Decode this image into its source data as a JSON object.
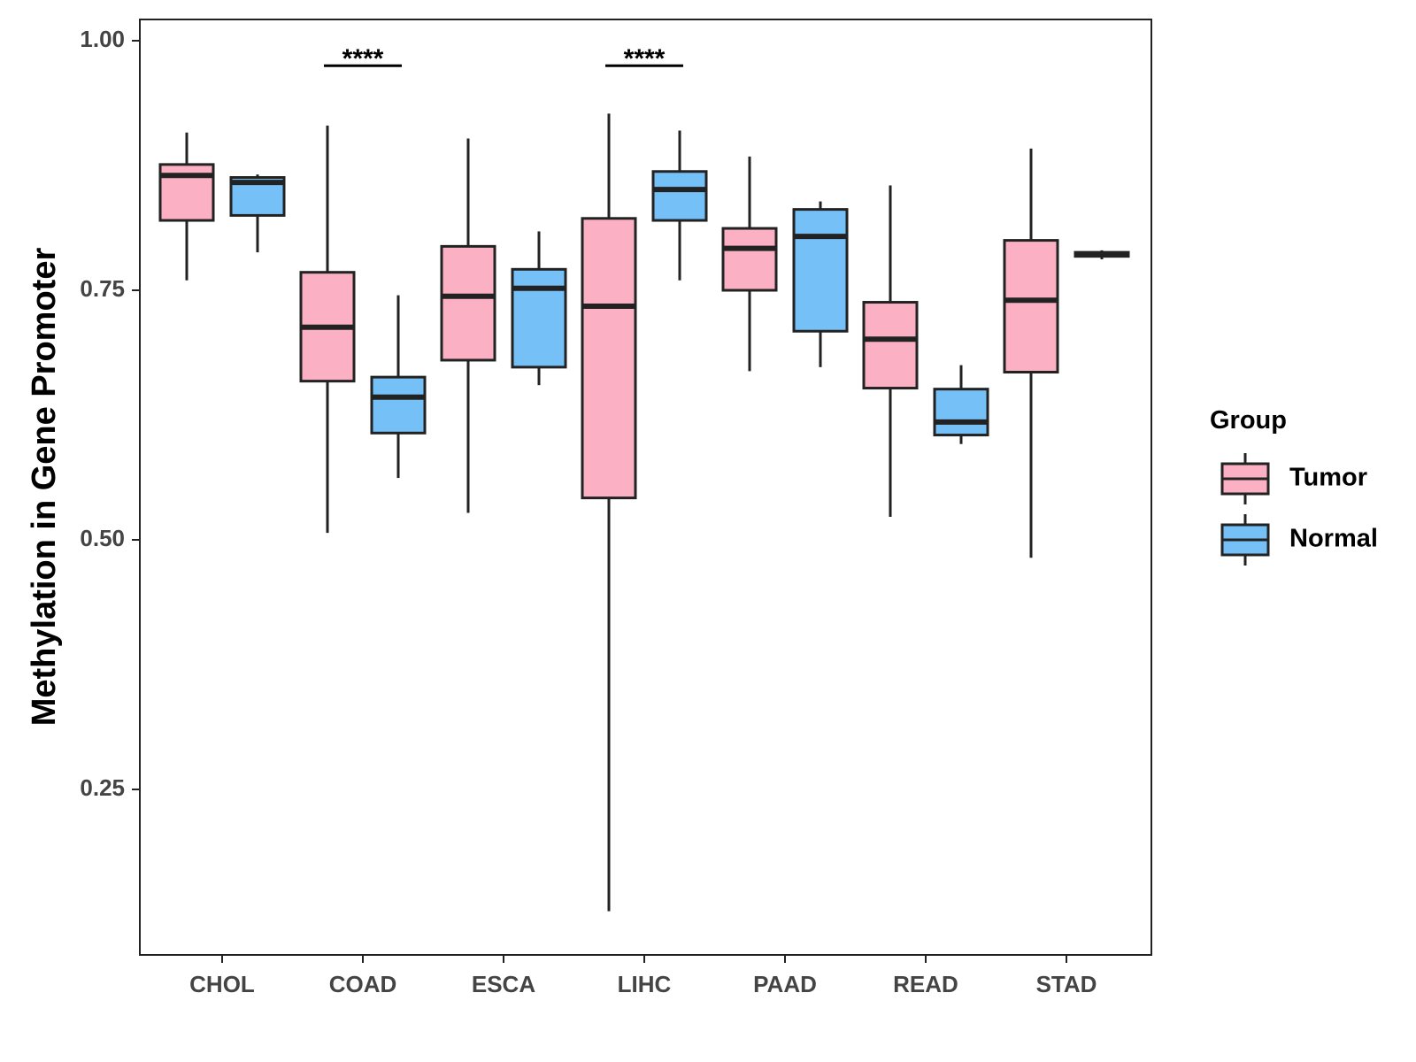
{
  "chart_data": {
    "type": "boxplot",
    "title": "",
    "xlabel": "",
    "ylabel": "Methylation in Gene Promoter",
    "ylim": [
      0.1,
      1.02
    ],
    "yticks": [
      0.25,
      0.5,
      0.75,
      1.0
    ],
    "ytick_labels": [
      "0.25",
      "0.50",
      "0.75",
      "1.00"
    ],
    "categories": [
      "CHOL",
      "COAD",
      "ESCA",
      "LIHC",
      "PAAD",
      "READ",
      "STAD"
    ],
    "legend_title": "Group",
    "legend_position": "right",
    "series": [
      {
        "name": "Tumor",
        "color": "#FBB1C3",
        "boxes": [
          {
            "whisker_low": 0.76,
            "q1": 0.82,
            "median": 0.865,
            "q3": 0.876,
            "whisker_high": 0.908
          },
          {
            "whisker_low": 0.507,
            "q1": 0.659,
            "median": 0.713,
            "q3": 0.768,
            "whisker_high": 0.915
          },
          {
            "whisker_low": 0.527,
            "q1": 0.68,
            "median": 0.744,
            "q3": 0.794,
            "whisker_high": 0.902
          },
          {
            "whisker_low": 0.128,
            "q1": 0.542,
            "median": 0.734,
            "q3": 0.822,
            "whisker_high": 0.927
          },
          {
            "whisker_low": 0.669,
            "q1": 0.75,
            "median": 0.792,
            "q3": 0.812,
            "whisker_high": 0.884
          },
          {
            "whisker_low": 0.523,
            "q1": 0.652,
            "median": 0.701,
            "q3": 0.738,
            "whisker_high": 0.855
          },
          {
            "whisker_low": 0.482,
            "q1": 0.668,
            "median": 0.74,
            "q3": 0.8,
            "whisker_high": 0.892
          }
        ]
      },
      {
        "name": "Normal",
        "color": "#76C0F8",
        "boxes": [
          {
            "whisker_low": 0.788,
            "q1": 0.825,
            "median": 0.858,
            "q3": 0.863,
            "whisker_high": 0.866
          },
          {
            "whisker_low": 0.562,
            "q1": 0.607,
            "median": 0.643,
            "q3": 0.663,
            "whisker_high": 0.745
          },
          {
            "whisker_low": 0.655,
            "q1": 0.673,
            "median": 0.752,
            "q3": 0.771,
            "whisker_high": 0.809
          },
          {
            "whisker_low": 0.76,
            "q1": 0.82,
            "median": 0.851,
            "q3": 0.869,
            "whisker_high": 0.91
          },
          {
            "whisker_low": 0.673,
            "q1": 0.709,
            "median": 0.804,
            "q3": 0.831,
            "whisker_high": 0.839
          },
          {
            "whisker_low": 0.596,
            "q1": 0.605,
            "median": 0.618,
            "q3": 0.651,
            "whisker_high": 0.675
          },
          {
            "whisker_low": 0.781,
            "q1": 0.784,
            "median": 0.786,
            "q3": 0.788,
            "whisker_high": 0.79
          }
        ]
      }
    ],
    "annotations": [
      {
        "category": "COAD",
        "label": "****",
        "y": 0.975
      },
      {
        "category": "LIHC",
        "label": "****",
        "y": 0.975
      }
    ]
  }
}
